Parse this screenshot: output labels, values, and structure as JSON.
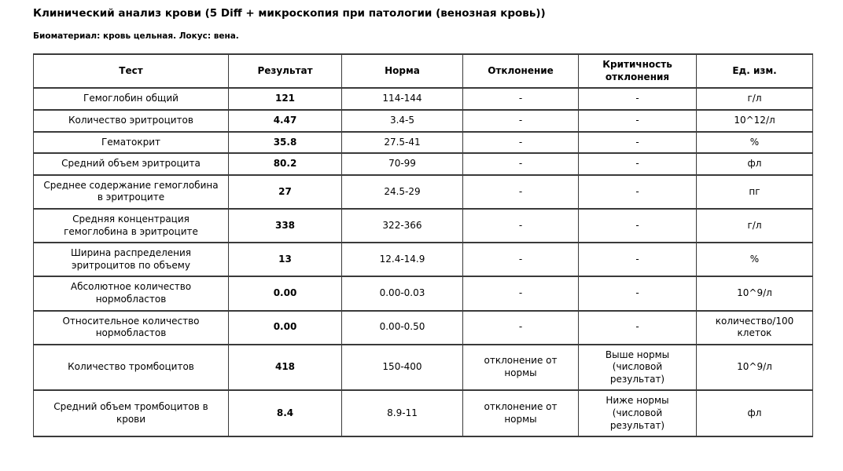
{
  "page": {
    "title": "Клинический анализ крови (5 Diff + микроскопия при патологии (венозная кровь))",
    "subtitle": "Биоматериал: кровь цельная. Локус: вена."
  },
  "table": {
    "headers": [
      "Тест",
      "Результат",
      "Норма",
      "Отклонение",
      "Критичность отклонения",
      "Ед. изм."
    ],
    "rows": [
      {
        "test": "Гемоглобин общий",
        "result": "121",
        "norm": "114-144",
        "deviation": "-",
        "criticality": "-",
        "unit": "г/л"
      },
      {
        "test": "Количество эритроцитов",
        "result": "4.47",
        "norm": "3.4-5",
        "deviation": "-",
        "criticality": "-",
        "unit": "10^12/л"
      },
      {
        "test": "Гематокрит",
        "result": "35.8",
        "norm": "27.5-41",
        "deviation": "-",
        "criticality": "-",
        "unit": "%"
      },
      {
        "test": "Средний объем эритроцита",
        "result": "80.2",
        "norm": "70-99",
        "deviation": "-",
        "criticality": "-",
        "unit": "фл"
      },
      {
        "test": "Среднее содержание гемоглобина в эритроците",
        "result": "27",
        "norm": "24.5-29",
        "deviation": "-",
        "criticality": "-",
        "unit": "пг"
      },
      {
        "test": "Средняя концентрация гемоглобина в эритроците",
        "result": "338",
        "norm": "322-366",
        "deviation": "-",
        "criticality": "-",
        "unit": "г/л"
      },
      {
        "test": "Ширина распределения эритроцитов по объему",
        "result": "13",
        "norm": "12.4-14.9",
        "deviation": "-",
        "criticality": "-",
        "unit": "%"
      },
      {
        "test": "Абсолютное количество нормобластов",
        "result": "0.00",
        "norm": "0.00-0.03",
        "deviation": "-",
        "criticality": "-",
        "unit": "10^9/л"
      },
      {
        "test": "Относительное количество нормобластов",
        "result": "0.00",
        "norm": "0.00-0.50",
        "deviation": "-",
        "criticality": "-",
        "unit": "количество/100 клеток"
      },
      {
        "test": "Количество тромбоцитов",
        "result": "418",
        "norm": "150-400",
        "deviation": "отклонение от нормы",
        "criticality": "Выше нормы (числовой результат)",
        "unit": "10^9/л"
      },
      {
        "test": "Средний объем тромбоцитов в крови",
        "result": "8.4",
        "norm": "8.9-11",
        "deviation": "отклонение от нормы",
        "criticality": "Ниже нормы (числовой результат)",
        "unit": "фл"
      }
    ]
  }
}
